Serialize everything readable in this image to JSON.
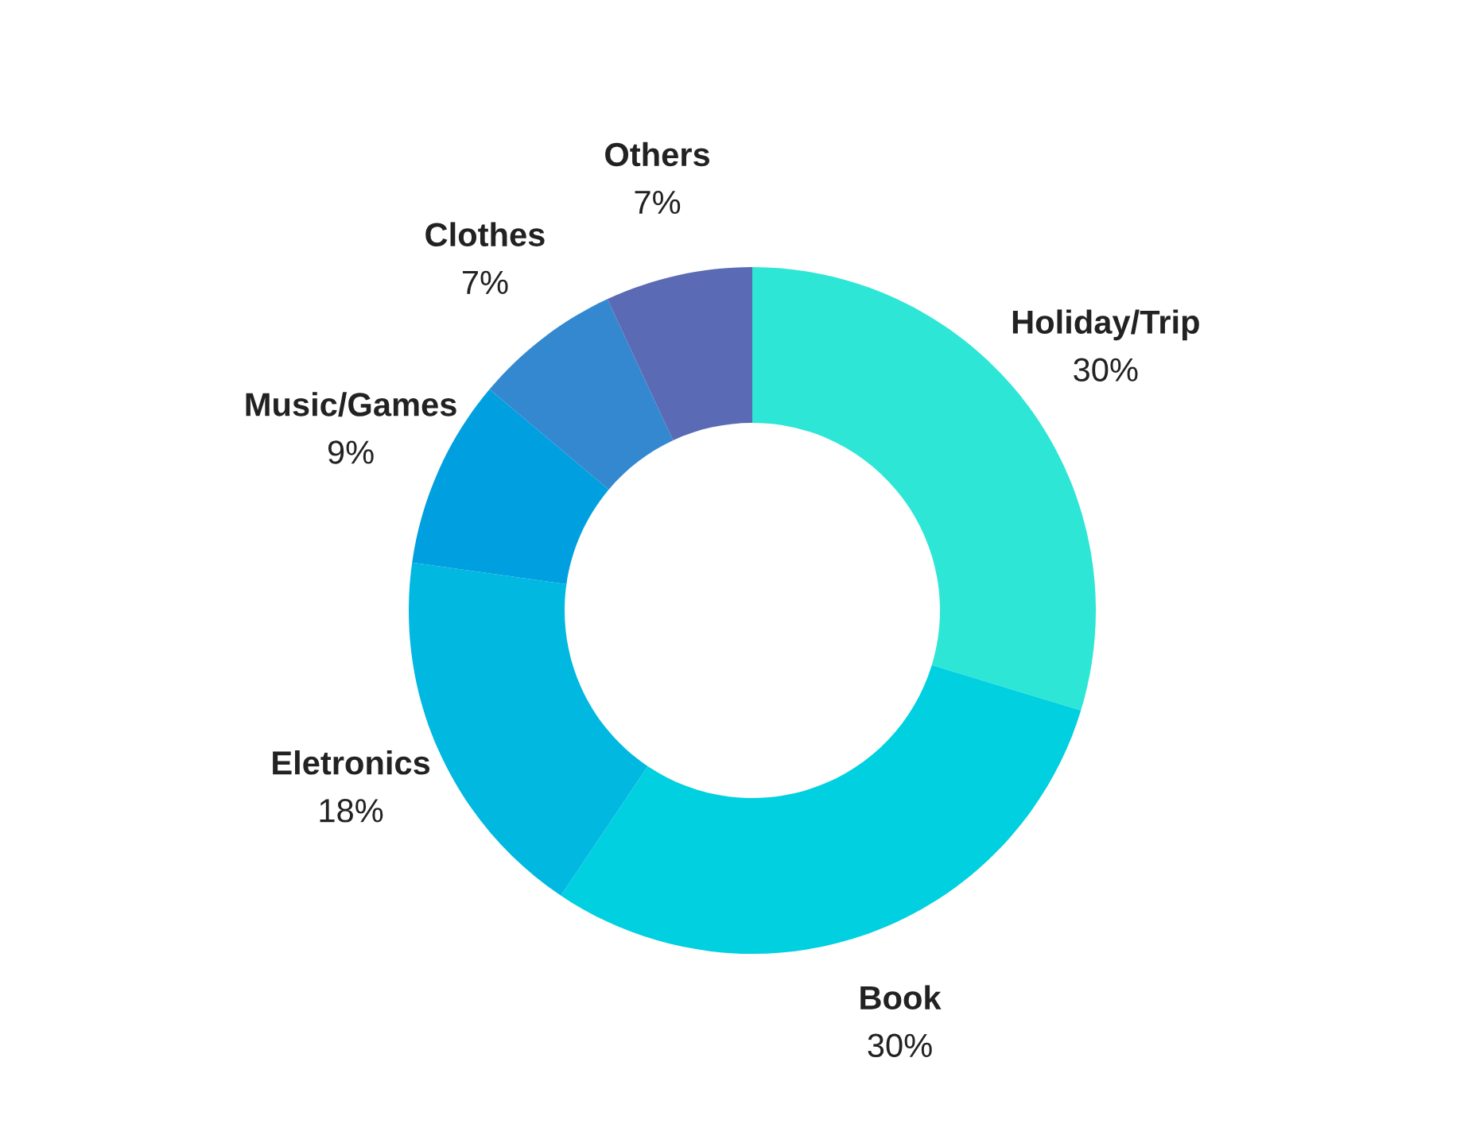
{
  "chart_data": {
    "type": "donut",
    "categories": [
      "Holiday/Trip",
      "Book",
      "Eletronics",
      "Music/Games",
      "Clothes",
      "Others"
    ],
    "values": [
      30,
      30,
      18,
      9,
      7,
      7
    ],
    "value_labels": [
      "30%",
      "30%",
      "18%",
      "9%",
      "7%",
      "7%"
    ],
    "colors": [
      "#2ee6d6",
      "#00d0e0",
      "#00b8e0",
      "#00a0e0",
      "#3388d0",
      "#5a6ab4"
    ],
    "legend": false
  }
}
